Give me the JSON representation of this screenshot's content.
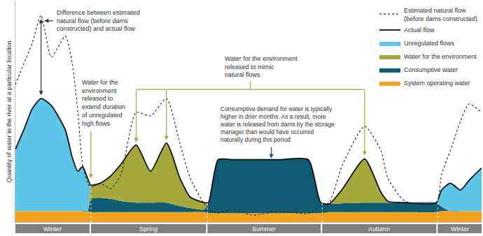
{
  "chart_data": {
    "type": "area",
    "stacked": true,
    "y_label": "Quantity of water in the river at a particular location",
    "tick_labels": false,
    "grid": false,
    "legend": "upper right",
    "xlim": [
      0,
      100
    ],
    "ylim": [
      0,
      100
    ],
    "xticks": [],
    "yticks": [],
    "x": [
      0,
      1.8,
      3.6,
      5.5,
      7.7,
      10.7,
      12.2,
      13.4,
      14.4,
      15.5,
      16.2,
      18.2,
      20.4,
      22.6,
      25.9,
      29.0,
      32.4,
      35.3,
      37.5,
      40.5,
      41.4,
      43.5,
      46.4,
      50.9,
      56.8,
      62.8,
      65.5,
      67.3,
      70.2,
      74.9,
      78.4,
      79.9,
      83.6,
      90.3,
      91.4,
      93.3,
      95.5,
      97.3,
      100
    ],
    "series": [
      {
        "name": "Estimated natural flow\n(before dams constructed)",
        "type": "line",
        "line_style": "dotted",
        "color": "#333333",
        "values": [
          62.3,
          71.7,
          81,
          93.7,
          74.8,
          84.3,
          71.7,
          49.7,
          26.1,
          17.6,
          15.7,
          17.6,
          15.1,
          21.4,
          49.7,
          48.1,
          56,
          35.5,
          19.8,
          8.2,
          5.7,
          4.1,
          5.7,
          3.1,
          5,
          3.8,
          7.2,
          8.8,
          26.1,
          43.4,
          32.4,
          19.8,
          9.4,
          8.8,
          21.4,
          32.4,
          45.9,
          53.5,
          49.7
        ]
      },
      {
        "name": "Actual flow",
        "type": "line",
        "line_style": "solid",
        "color": "#111111",
        "values": [
          33,
          41.8,
          51.3,
          56,
          52.8,
          41.8,
          29.2,
          23,
          25.2,
          19.8,
          16.7,
          17.6,
          20.8,
          26.1,
          34.9,
          23,
          35.8,
          19.8,
          11.3,
          8.8,
          8.8,
          28.3,
          28.3,
          28.3,
          28.3,
          28.3,
          8.8,
          8.2,
          15.1,
          28.6,
          13.5,
          9.4,
          8.8,
          8.8,
          14.5,
          17.6,
          14.5,
          18.9,
          24.5
        ]
      },
      {
        "name": "Unregulated flows",
        "type": "area",
        "color": "#5cc6e9",
        "values": [
          28,
          36.8,
          46.3,
          51,
          47.8,
          36.8,
          24.2,
          18,
          20.2,
          14.8,
          0,
          0,
          0,
          0,
          0,
          0,
          0,
          0,
          0,
          0,
          0,
          0,
          0,
          0,
          0,
          0,
          0,
          0,
          0,
          0,
          0,
          0,
          0,
          0,
          7.5,
          12.6,
          9.5,
          13.9,
          19.5
        ]
      },
      {
        "name": "Water for the environment",
        "type": "area",
        "color": "#a5a83a",
        "values": [
          0,
          0,
          0,
          0,
          0,
          0,
          0,
          0,
          0,
          0,
          6.2,
          6.6,
          10.3,
          16.6,
          26.1,
          14.2,
          27,
          12.6,
          5,
          3.1,
          0,
          0,
          0,
          0,
          0,
          0,
          0,
          0,
          6.6,
          19.8,
          4.7,
          0.6,
          0,
          0,
          0,
          0,
          0,
          0,
          0
        ]
      },
      {
        "name": "Consumptive water",
        "type": "area",
        "color": "#0e5b73",
        "values": [
          0,
          0,
          0,
          0,
          0,
          0,
          0,
          0,
          0,
          0,
          6,
          6.5,
          6,
          5,
          4.3,
          4.3,
          4.3,
          2.7,
          1.8,
          1.2,
          4.8,
          24.3,
          24.3,
          24.3,
          24.3,
          24.3,
          4.8,
          3.7,
          4,
          4.3,
          4.3,
          4.3,
          4.3,
          4.3,
          2,
          0,
          0,
          0,
          0
        ]
      },
      {
        "name": "System operating water",
        "type": "area",
        "color": "#f6a21c",
        "values": [
          5,
          5,
          5,
          5,
          5,
          5,
          5,
          5,
          5,
          5,
          4.5,
          4.5,
          4.5,
          4.5,
          4.5,
          4.5,
          4.5,
          4.5,
          4.5,
          4.5,
          4,
          4,
          4,
          4,
          4,
          4,
          4,
          4.5,
          4.5,
          4.5,
          4.5,
          4.5,
          4.5,
          4.5,
          5,
          5,
          5,
          5,
          5
        ]
      }
    ],
    "annotations": [
      {
        "text": "Difference between estimated\nnatural flow (before dams\nconstructed) and actual flow"
      },
      {
        "text": "Water for the\nenvironment\nreleased to\nextend duration\nof unregulated\nhigh flows"
      },
      {
        "text": "Water for the environment\nreleased to mimic\nnatural flows"
      },
      {
        "text": "Consumptive demand for water is typically\nhigher in drier months. As a result, more\nwater is released from dams by the storage\nmanager than would have occurred\nnaturally during this period"
      }
    ],
    "seasons": [
      {
        "label": "Winter",
        "start": 0,
        "end": 15.9
      },
      {
        "label": "Spring",
        "start": 16.2,
        "end": 40.9
      },
      {
        "label": "Summer",
        "start": 41.2,
        "end": 65.5
      },
      {
        "label": "Autumn",
        "start": 65.8,
        "end": 90.3
      },
      {
        "label": "Winter",
        "start": 90.6,
        "end": 100
      }
    ]
  }
}
